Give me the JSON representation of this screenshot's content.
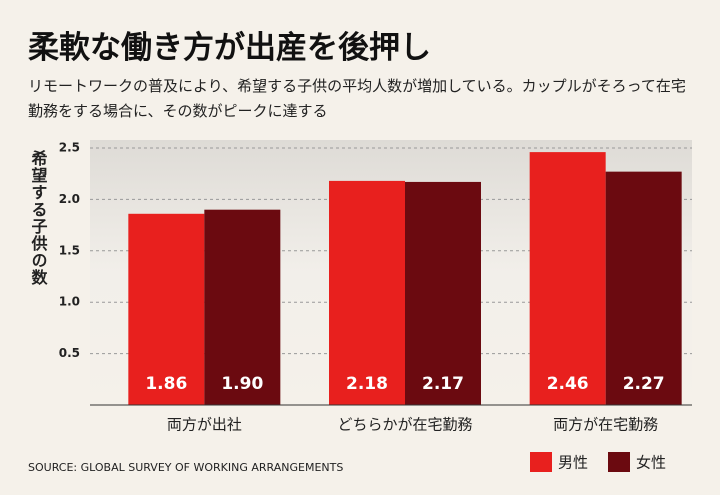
{
  "chart_data": {
    "type": "bar",
    "title": "柔軟な働き方が出産を後押し",
    "subtitle": "リモートワークの普及により、希望する子供の平均人数が増加している。カップルがそろって在宅勤務をする場合に、その数がピークに達する",
    "y_label": "希望する子供の数",
    "source": "SOURCE: GLOBAL SURVEY OF WORKING ARRANGEMENTS",
    "categories": [
      "両方が出社",
      "どちらかが在宅勤務",
      "両方が在宅勤務"
    ],
    "series": [
      {
        "name": "男性",
        "color": "#e8201e",
        "values": [
          1.86,
          2.18,
          2.46
        ],
        "value_labels": [
          "1.86",
          "2.18",
          "2.46"
        ]
      },
      {
        "name": "女性",
        "color": "#6b0a10",
        "values": [
          1.9,
          2.17,
          2.27
        ],
        "value_labels": [
          "1.90",
          "2.17",
          "2.27"
        ]
      }
    ],
    "ylim": [
      0,
      2.5
    ],
    "yticks": [
      {
        "value": 0.5,
        "label": "0.5"
      },
      {
        "value": 1,
        "label": "1.0"
      },
      {
        "value": 1.5,
        "label": "1.5"
      },
      {
        "value": 2,
        "label": "2.0"
      },
      {
        "value": 2.5,
        "label": "2.5"
      }
    ],
    "grid": true
  }
}
